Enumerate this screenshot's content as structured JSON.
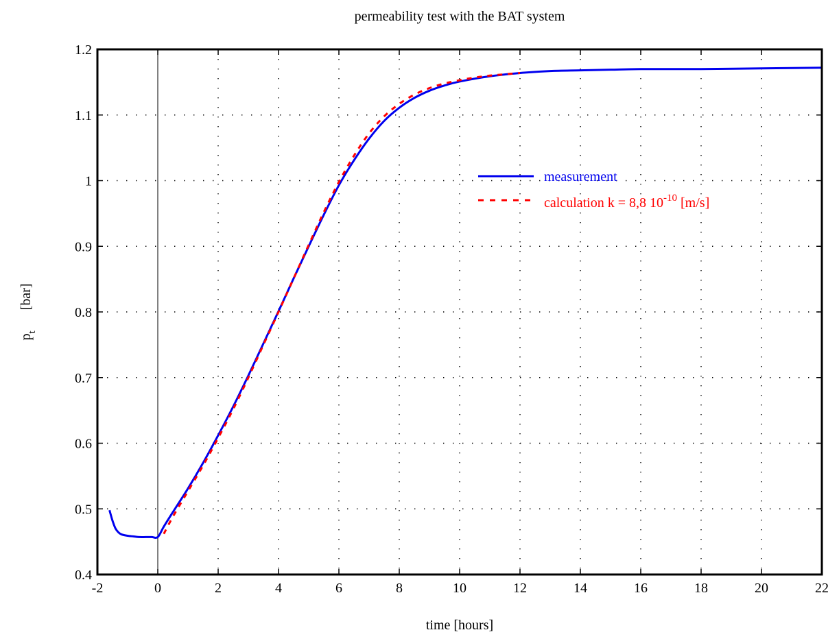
{
  "chart_data": {
    "type": "line",
    "title": "permeability test with the BAT system",
    "xlabel": "time [hours]",
    "ylabel": {
      "main": "p",
      "subscript": "t",
      "unit": "[bar]"
    },
    "xlim": [
      -2,
      22
    ],
    "ylim": [
      0.4,
      1.2
    ],
    "xticks": [
      -2,
      0,
      2,
      4,
      6,
      8,
      10,
      12,
      14,
      16,
      18,
      20,
      22
    ],
    "xtick_labels": [
      "-2",
      "0",
      "2",
      "4",
      "6",
      "8",
      "10",
      "12",
      "14",
      "16",
      "18",
      "20",
      "22"
    ],
    "yticks": [
      0.4,
      0.5,
      0.6,
      0.7,
      0.8,
      0.9,
      1.0,
      1.1,
      1.2
    ],
    "ytick_labels": [
      "0.4",
      "0.5",
      "0.6",
      "0.7",
      "0.8",
      "0.9",
      "1",
      "1.1",
      "1.2"
    ],
    "grid": "dotted",
    "vertical_line_at_x": 0,
    "legend_placement": "center-right",
    "series": [
      {
        "name": "measurement",
        "style": "solid",
        "color": "#0000ee",
        "x": [
          -1.6,
          -1.5,
          -1.4,
          -1.3,
          -1.2,
          -1.0,
          -0.8,
          -0.6,
          -0.4,
          -0.2,
          0.0,
          0.2,
          0.5,
          1.0,
          1.5,
          2.0,
          2.5,
          3.0,
          3.5,
          4.0,
          4.5,
          5.0,
          5.5,
          6.0,
          6.5,
          7.0,
          7.5,
          8.0,
          8.5,
          9.0,
          9.5,
          10.0,
          11.0,
          12.0,
          13.0,
          14.0,
          15.0,
          16.0,
          18.0,
          20.0,
          22.0
        ],
        "y": [
          0.498,
          0.482,
          0.47,
          0.464,
          0.461,
          0.459,
          0.458,
          0.457,
          0.457,
          0.457,
          0.457,
          0.473,
          0.495,
          0.531,
          0.57,
          0.612,
          0.656,
          0.703,
          0.752,
          0.801,
          0.851,
          0.9,
          0.948,
          0.993,
          1.031,
          1.064,
          1.091,
          1.111,
          1.126,
          1.137,
          1.145,
          1.151,
          1.159,
          1.164,
          1.167,
          1.168,
          1.169,
          1.17,
          1.17,
          1.171,
          1.172
        ]
      },
      {
        "name": "calculation k = 8,8 10",
        "name_superscript": "-10",
        "name_suffix": "[m/s]",
        "style": "dashed",
        "color": "#ff0000",
        "x": [
          0.2,
          0.5,
          1.0,
          1.5,
          2.0,
          2.5,
          3.0,
          3.5,
          4.0,
          4.5,
          5.0,
          5.5,
          6.0,
          6.5,
          7.0,
          7.5,
          8.0,
          8.5,
          9.0,
          9.5,
          10.0,
          10.5,
          11.0,
          11.5,
          12.0
        ],
        "y": [
          0.462,
          0.488,
          0.527,
          0.566,
          0.608,
          0.652,
          0.7,
          0.75,
          0.8,
          0.851,
          0.902,
          0.952,
          0.998,
          1.038,
          1.072,
          1.098,
          1.117,
          1.131,
          1.141,
          1.148,
          1.153,
          1.157,
          1.16,
          1.162,
          1.164
        ]
      }
    ]
  }
}
